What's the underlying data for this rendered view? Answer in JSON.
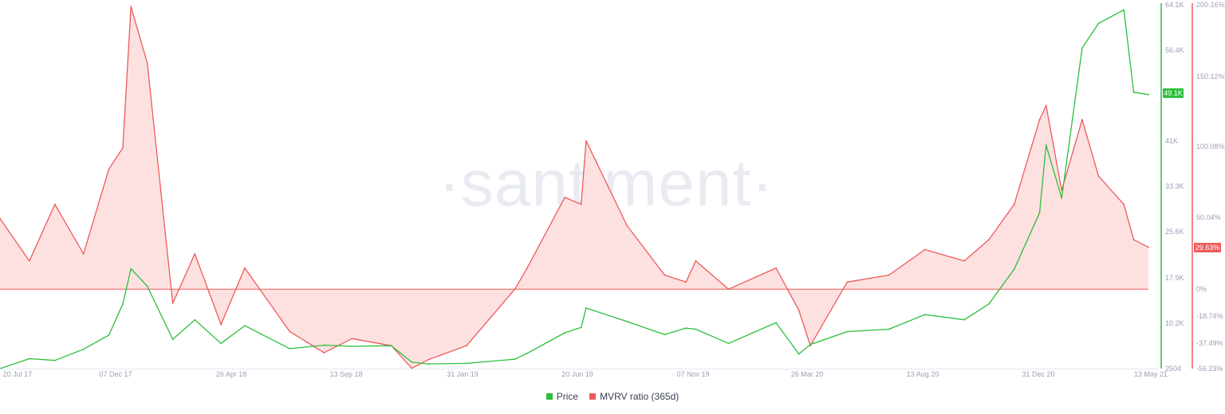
{
  "watermark": "·santiment·",
  "legend": {
    "price_label": "Price",
    "mvrv_label": "MVRV ratio (365d)",
    "price_color": "#2bbf3a",
    "mvrv_color": "#ee5a5a"
  },
  "chart_data": {
    "type": "line",
    "x_ticks": [
      "20 Jul 17",
      "07 Dec 17",
      "26 Apr 18",
      "13 Sep 18",
      "31 Jan 19",
      "20 Jun 19",
      "07 Nov 19",
      "26 Mar 20",
      "13 Aug 20",
      "31 Dec 20",
      "13 May 21"
    ],
    "y_left_ticks": [
      "64.1K",
      "56.4K",
      "49.1K",
      "41K",
      "33.3K",
      "25.6K",
      "17.9K",
      "10.2K",
      "2504"
    ],
    "y_right_ticks": [
      "200.16%",
      "150.12%",
      "100.08%",
      "50.04%",
      "29.63%",
      "0%",
      "-18.74%",
      "-37.49%",
      "-56.23%"
    ],
    "price_current_label": "49.1K",
    "mvrv_current_label": "29.63%",
    "price_range": [
      2504,
      64100
    ],
    "mvrv_range": [
      -56.23,
      200.16
    ],
    "x": [
      "2017-07-10",
      "2017-08-15",
      "2017-09-15",
      "2017-10-20",
      "2017-11-20",
      "2017-12-07",
      "2017-12-17",
      "2018-01-06",
      "2018-02-06",
      "2018-03-05",
      "2018-04-06",
      "2018-05-05",
      "2018-06-29",
      "2018-08-10",
      "2018-09-13",
      "2018-10-31",
      "2018-11-25",
      "2018-12-15",
      "2019-01-31",
      "2019-03-31",
      "2019-04-15",
      "2019-05-31",
      "2019-06-20",
      "2019-06-26",
      "2019-08-15",
      "2019-09-30",
      "2019-10-26",
      "2019-11-07",
      "2019-12-17",
      "2020-02-13",
      "2020-03-12",
      "2020-03-26",
      "2020-05-10",
      "2020-06-30",
      "2020-08-13",
      "2020-09-30",
      "2020-10-30",
      "2020-11-30",
      "2020-12-31",
      "2021-01-08",
      "2021-01-27",
      "2021-02-21",
      "2021-03-13",
      "2021-04-13",
      "2021-04-25",
      "2021-05-13"
    ],
    "series": [
      {
        "name": "Price",
        "axis": "left",
        "color": "#2bbf3a",
        "values": [
          2500,
          4200,
          3900,
          5800,
          8200,
          13500,
          19500,
          16500,
          7500,
          10800,
          6800,
          9800,
          5900,
          6500,
          6300,
          6400,
          3600,
          3300,
          3400,
          4100,
          5100,
          8600,
          9500,
          12800,
          10500,
          8300,
          9400,
          9200,
          6800,
          10300,
          5000,
          6600,
          8800,
          9200,
          11700,
          10800,
          13500,
          19400,
          29000,
          40500,
          31500,
          57000,
          61200,
          63500,
          49500,
          49100
        ]
      },
      {
        "name": "MVRV ratio (365d)",
        "axis": "right",
        "color": "#ee5a5a",
        "values": [
          50,
          20,
          60,
          25,
          85,
          100,
          200,
          160,
          -10,
          25,
          -25,
          15,
          -30,
          -45,
          -35,
          -40,
          -56,
          -50,
          -40,
          0,
          15,
          65,
          60,
          105,
          45,
          10,
          5,
          20,
          0,
          15,
          -15,
          -40,
          5,
          10,
          28,
          20,
          35,
          60,
          120,
          130,
          70,
          120,
          80,
          60,
          35,
          29.63
        ]
      }
    ],
    "zero_line": 0,
    "grid": false,
    "legend_position": "bottom-center"
  }
}
